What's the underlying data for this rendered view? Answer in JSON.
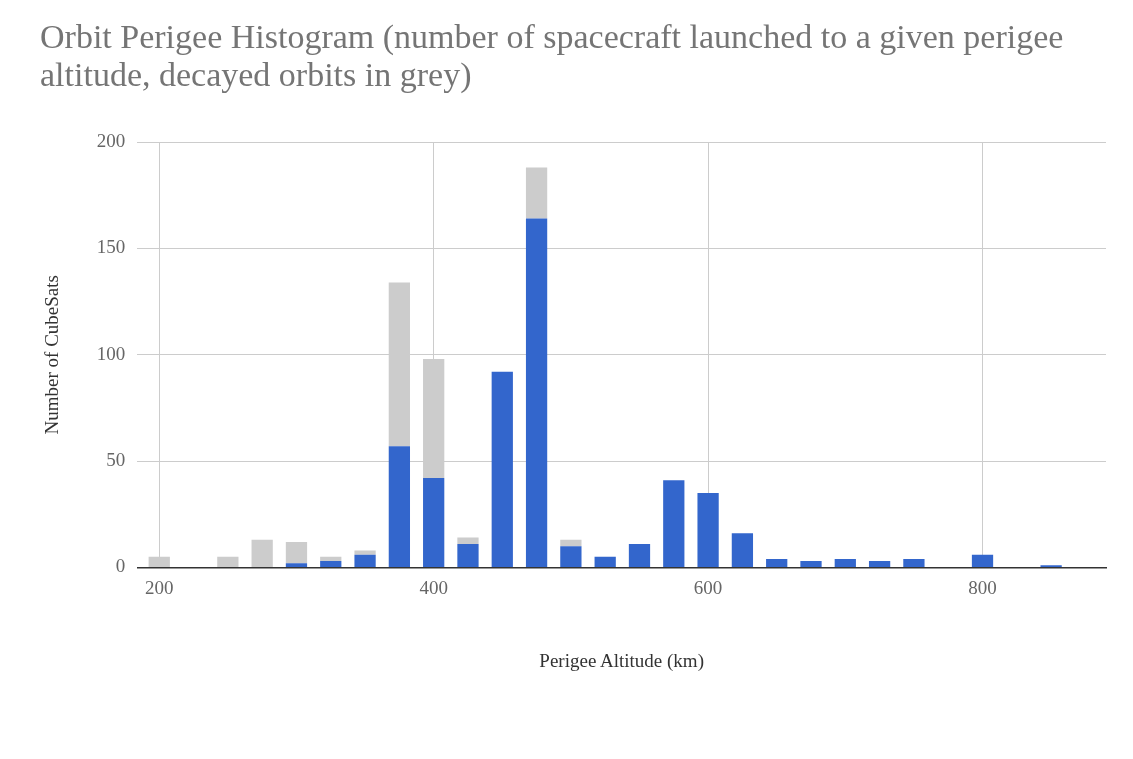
{
  "chart_data": {
    "type": "bar",
    "title": "Orbit Perigee Histogram (number of spacecraft launched to a given perigee altitude, decayed orbits in grey)",
    "xlabel": "Perigee Altitude (km)",
    "ylabel": "Number of CubeSats",
    "x": [
      200,
      225,
      250,
      275,
      300,
      325,
      350,
      375,
      400,
      425,
      450,
      475,
      500,
      525,
      550,
      575,
      600,
      625,
      650,
      675,
      700,
      725,
      750,
      775,
      800,
      825,
      850
    ],
    "stacked": true,
    "series": [
      {
        "color": "#3366cc",
        "values": [
          0,
          0,
          0,
          0,
          2,
          3,
          6,
          57,
          42,
          11,
          92,
          164,
          10,
          5,
          11,
          41,
          35,
          16,
          4,
          3,
          4,
          3,
          4,
          0,
          6,
          0,
          1
        ]
      },
      {
        "color": "#cccccc",
        "values": [
          5,
          0,
          5,
          13,
          10,
          2,
          2,
          77,
          56,
          3,
          0,
          24,
          3,
          0,
          0,
          0,
          0,
          0,
          0,
          0,
          0,
          0,
          0,
          0,
          0,
          0,
          0
        ]
      }
    ],
    "xlim": [
      184,
      890
    ],
    "xticks": [
      200,
      400,
      600,
      800
    ],
    "ylim": [
      0,
      200
    ],
    "yticks": [
      0,
      50,
      100,
      150,
      200
    ],
    "grid": true
  }
}
